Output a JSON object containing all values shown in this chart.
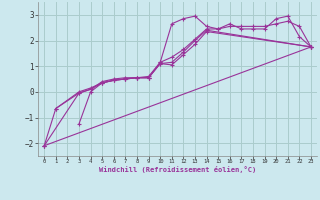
{
  "title": "",
  "xlabel": "Windchill (Refroidissement éolien,°C)",
  "ylabel": "",
  "bg_color": "#cce8ee",
  "line_color": "#993399",
  "grid_color": "#aacccc",
  "xlim": [
    -0.5,
    23.5
  ],
  "ylim": [
    -2.5,
    3.5
  ],
  "yticks": [
    -2,
    -1,
    0,
    1,
    2,
    3
  ],
  "xticks": [
    0,
    1,
    2,
    3,
    4,
    5,
    6,
    7,
    8,
    9,
    10,
    11,
    12,
    13,
    14,
    15,
    16,
    17,
    18,
    19,
    20,
    21,
    22,
    23
  ],
  "series": [
    {
      "x": [
        0,
        1,
        3,
        4,
        5,
        6,
        7,
        8,
        9,
        10,
        11,
        12,
        13,
        14,
        15,
        16,
        17,
        18,
        19,
        20,
        21,
        22,
        23
      ],
      "y": [
        -2.1,
        -0.65,
        -0.05,
        0.1,
        0.4,
        0.5,
        0.55,
        0.55,
        0.55,
        1.15,
        2.65,
        2.85,
        2.95,
        2.55,
        2.45,
        2.65,
        2.45,
        2.45,
        2.45,
        2.85,
        2.95,
        2.15,
        1.75
      ]
    },
    {
      "x": [
        0,
        3,
        4,
        5,
        6,
        7,
        8,
        9,
        10,
        11,
        12,
        13,
        14,
        15,
        16,
        17,
        18,
        19,
        20,
        21,
        22,
        23
      ],
      "y": [
        -2.1,
        -0.05,
        0.1,
        0.35,
        0.45,
        0.5,
        0.55,
        0.6,
        1.15,
        1.35,
        1.65,
        2.05,
        2.45,
        2.45,
        2.55,
        2.55,
        2.55,
        2.55,
        2.65,
        2.75,
        2.55,
        1.75
      ]
    },
    {
      "x": [
        1,
        3,
        4,
        5,
        6,
        7,
        8,
        9,
        10,
        11,
        12,
        13,
        14,
        23
      ],
      "y": [
        -0.65,
        0.0,
        0.15,
        0.35,
        0.45,
        0.5,
        0.55,
        0.55,
        1.1,
        1.15,
        1.55,
        2.0,
        2.4,
        1.75
      ]
    },
    {
      "x": [
        0,
        23
      ],
      "y": [
        -2.1,
        1.75
      ]
    },
    {
      "x": [
        3,
        4,
        5,
        6,
        7,
        8,
        9,
        10,
        11,
        12,
        13,
        14,
        23
      ],
      "y": [
        -1.25,
        0.0,
        0.35,
        0.45,
        0.5,
        0.55,
        0.55,
        1.1,
        1.05,
        1.45,
        1.85,
        2.35,
        1.75
      ]
    }
  ]
}
